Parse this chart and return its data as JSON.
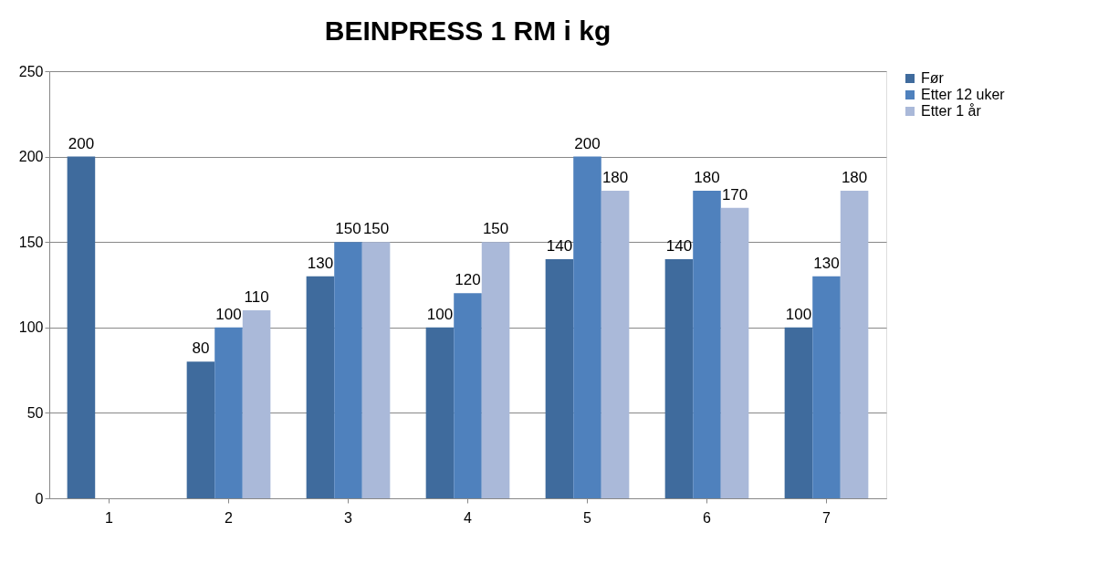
{
  "chart_data": {
    "type": "bar",
    "title": "BEINPRESS 1 RM i  kg",
    "categories": [
      "1",
      "2",
      "3",
      "4",
      "5",
      "6",
      "7"
    ],
    "series": [
      {
        "name": "Før",
        "color": "#3f6b9d",
        "values": [
          200,
          80,
          130,
          100,
          140,
          140,
          100
        ]
      },
      {
        "name": "Etter 12 uker",
        "color": "#4f81bd",
        "values": [
          null,
          100,
          150,
          120,
          200,
          180,
          130
        ]
      },
      {
        "name": "Etter 1 år",
        "color": "#aab9d9",
        "values": [
          null,
          110,
          150,
          150,
          180,
          170,
          180
        ]
      }
    ],
    "ylim": [
      0,
      250
    ],
    "yticks": [
      0,
      50,
      100,
      150,
      200,
      250
    ],
    "grid": "y",
    "legend": "right",
    "data_labels": true
  }
}
